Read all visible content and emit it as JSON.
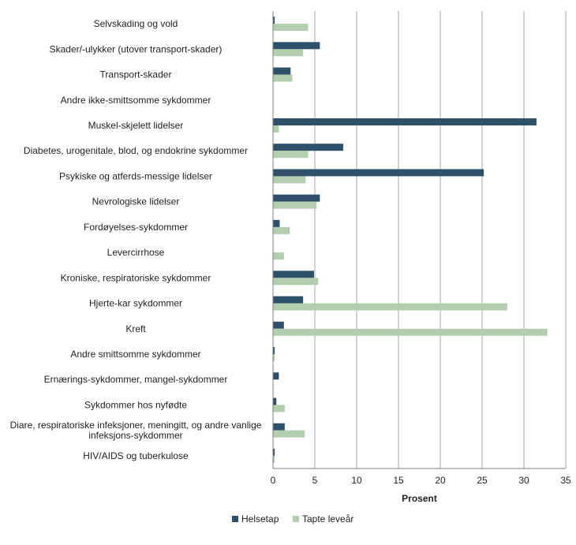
{
  "chart_data": {
    "type": "bar",
    "orientation": "horizontal",
    "categories": [
      "Selvskading og vold",
      "Skader/-ulykker (utover transport-skader)",
      "Transport-skader",
      "Andre ikke-smittsomme sykdommer",
      "Muskel-skjelett lidelser",
      "Diabetes, urogenitale, blod, og endokrine sykdommer",
      "Psykiske og atferds-messige lidelser",
      "Nevrologiske lidelser",
      "Fordøyelses-sykdommer",
      "Levercirrhose",
      "Kroniske, respiratoriske sykdommer",
      "Hjerte-kar sykdommer",
      "Kreft",
      "Andre smittsomme sykdommer",
      "Ernærings-sykdommer, mangel-sykdommer",
      "Sykdommer hos nyfødte",
      "Diare, respiratoriske infeksjoner, meningitt, og andre vanlige infeksjons-sykdommer",
      "HIV/AIDS og tuberkulose"
    ],
    "series": [
      {
        "name": "Helsetap",
        "color": "#2e5068",
        "values": [
          0.2,
          5.6,
          2.1,
          0,
          31.5,
          8.4,
          25.2,
          5.6,
          0.8,
          0,
          4.9,
          3.6,
          1.3,
          0.2,
          0.7,
          0.4,
          1.4,
          0.2
        ]
      },
      {
        "name": "Tapte leveår",
        "color": "#b2ceaf",
        "values": [
          4.2,
          3.6,
          2.3,
          0,
          0.7,
          4.2,
          3.9,
          5.2,
          2.0,
          1.3,
          5.4,
          28.0,
          32.8,
          0.2,
          0,
          1.4,
          3.8,
          0.2
        ]
      }
    ],
    "xlabel": "Prosent",
    "ylabel": "",
    "xlim": [
      0,
      35
    ],
    "xticks": [
      "0",
      "5",
      "10",
      "15",
      "20",
      "25",
      "30",
      "35"
    ],
    "grid": true,
    "legend": "bottom"
  }
}
